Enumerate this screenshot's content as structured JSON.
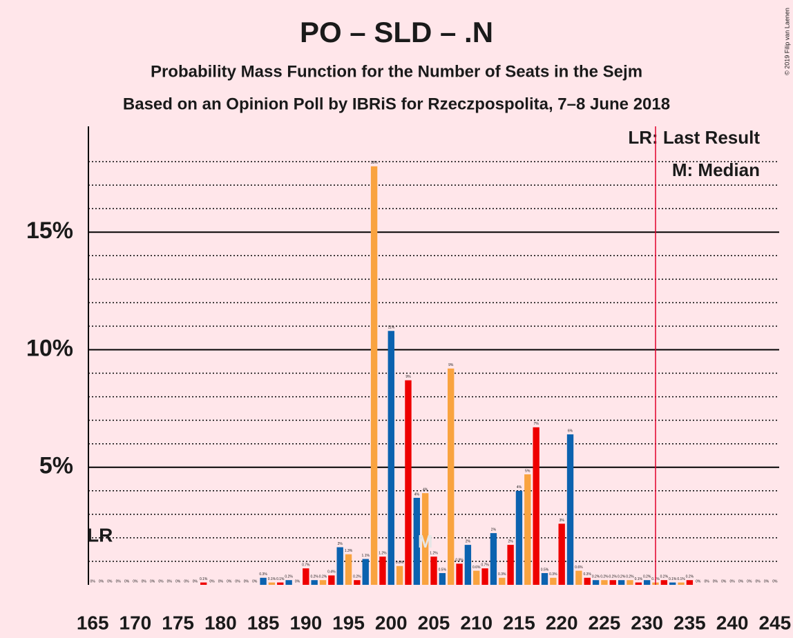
{
  "chart_data": {
    "type": "bar",
    "title": "PO – SLD – .N",
    "subtitle": "Probability Mass Function for the Number of Seats in the Sejm",
    "subtitle2": "Based on an Opinion Poll by IBRiS for Rzeczpospolita, 7–8 June 2018",
    "copyright": "© 2019 Filip van Laenen",
    "x": [
      165,
      166,
      167,
      168,
      169,
      170,
      171,
      172,
      173,
      174,
      175,
      176,
      177,
      178,
      179,
      180,
      181,
      182,
      183,
      184,
      185,
      186,
      187,
      188,
      189,
      190,
      191,
      192,
      193,
      194,
      195,
      196,
      197,
      198,
      199,
      200,
      201,
      202,
      203,
      204,
      205,
      206,
      207,
      208,
      209,
      210,
      211,
      212,
      213,
      214,
      215,
      216,
      217,
      218,
      219,
      220,
      221,
      222,
      223,
      224,
      225,
      226,
      227,
      228,
      229,
      230,
      231,
      232,
      233,
      234,
      235,
      236,
      237,
      238,
      239,
      240,
      241,
      242,
      243,
      244,
      245
    ],
    "values": [
      0,
      0,
      0,
      0,
      0,
      0,
      0,
      0,
      0,
      0,
      0,
      0,
      0,
      0.1,
      0,
      0,
      0,
      0,
      0,
      0,
      0.3,
      0.1,
      0.1,
      0.2,
      0,
      0.7,
      0.2,
      0.2,
      0.4,
      1.6,
      1.3,
      0.2,
      1.1,
      17.8,
      1.2,
      10.8,
      0.8,
      8.7,
      3.7,
      3.9,
      1.2,
      0.5,
      9.2,
      0.9,
      1.7,
      0.6,
      0.7,
      2.2,
      0.3,
      1.7,
      4.0,
      4.7,
      6.7,
      0.5,
      0.3,
      2.6,
      6.4,
      0.6,
      0.3,
      0.2,
      0.2,
      0.2,
      0.2,
      0.2,
      0.1,
      0.2,
      0.1,
      0.2,
      0.1,
      0.1,
      0.2,
      0,
      0,
      0,
      0,
      0,
      0,
      0,
      0,
      0,
      0
    ],
    "value_labels": [
      "0%",
      "0%",
      "0%",
      "0%",
      "0%",
      "0%",
      "0%",
      "0%",
      "0%",
      "0%",
      "0%",
      "0%",
      "0%",
      "0.1%",
      "0%",
      "0%",
      "0%",
      "0%",
      "0%",
      "0%",
      "0.3%",
      "0.1%",
      "0.1%",
      "0.2%",
      "0%",
      "0.7%",
      "0.2%",
      "0.2%",
      "0.4%",
      "2%",
      "1.3%",
      "0.2%",
      "1.1%",
      "18%",
      "1.2%",
      "11%",
      "0.8%",
      "9%",
      "4%",
      "4%",
      "1.2%",
      "0.5%",
      "9%",
      "0.9%",
      "2%",
      "0.6%",
      "0.7%",
      "2%",
      "0.3%",
      "2%",
      "4%",
      "5%",
      "7%",
      "0.5%",
      "0.3%",
      "3%",
      "6%",
      "0.6%",
      "0.3%",
      "0.2%",
      "0.2%",
      "0.2%",
      "0.2%",
      "0.2%",
      "0.1%",
      "0.2%",
      "0.1%",
      "0.2%",
      "0.1%",
      "0.1%",
      "0.2%",
      "0%",
      "0%",
      "0%",
      "0%",
      "0%",
      "0%",
      "0%",
      "0%",
      "0%",
      "0%"
    ],
    "color_cycle": [
      "#F9A33F",
      "#EE0000",
      "#0B62AF"
    ],
    "xlim": [
      164.5,
      245.5
    ],
    "xticks": [
      165,
      170,
      175,
      180,
      185,
      190,
      195,
      200,
      205,
      210,
      215,
      220,
      225,
      230,
      235,
      240,
      245
    ],
    "ylim": [
      0,
      19.5
    ],
    "yticks": [
      {
        "value": 5,
        "label": "5%"
      },
      {
        "value": 10,
        "label": "10%"
      },
      {
        "value": 15,
        "label": "15%"
      }
    ],
    "minor_yticks": [
      1,
      2,
      3,
      4,
      6,
      7,
      8,
      9,
      11,
      12,
      13,
      14,
      16,
      17,
      18
    ],
    "last_result": 231,
    "last_result_label": "LR",
    "median": 204,
    "median_label": "M",
    "legend": [
      "LR: Last Result",
      "M: Median"
    ]
  }
}
